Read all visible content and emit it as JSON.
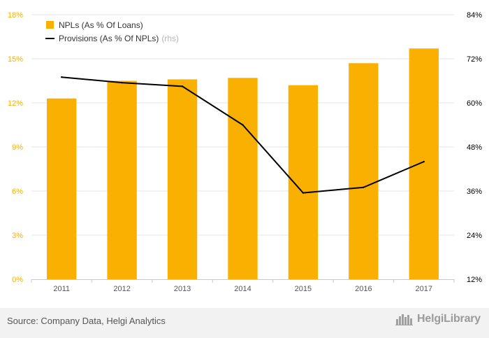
{
  "chart_data": {
    "type": "bar",
    "categories": [
      "2011",
      "2012",
      "2013",
      "2014",
      "2015",
      "2016",
      "2017"
    ],
    "series": [
      {
        "name": "NPLs (As % Of Loans)",
        "type": "bar",
        "axis": "left",
        "color": "#f9b000",
        "values": [
          12.3,
          13.5,
          13.6,
          13.7,
          13.2,
          14.7,
          15.7
        ]
      },
      {
        "name": "Provisions (As % Of NPLs)",
        "suffix": "(rhs)",
        "type": "line",
        "axis": "right",
        "color": "#000000",
        "values": [
          67,
          65.5,
          64.5,
          54,
          35.5,
          37,
          44
        ]
      }
    ],
    "left_axis": {
      "ylim": [
        0,
        18
      ],
      "ticks": [
        "0%",
        "3%",
        "6%",
        "9%",
        "12%",
        "15%",
        "18%"
      ],
      "color": "#f9b000"
    },
    "right_axis": {
      "ylim": [
        12,
        84
      ],
      "ticks": [
        "12%",
        "24%",
        "36%",
        "48%",
        "60%",
        "72%",
        "84%"
      ],
      "color": "#000000"
    },
    "grid": true,
    "legend_position": "top-left"
  },
  "footer": {
    "source": "Source: Company Data, Helgi Analytics",
    "brand_name": "HelgiLibrary",
    "brand_icon": "city-skyline-icon"
  }
}
